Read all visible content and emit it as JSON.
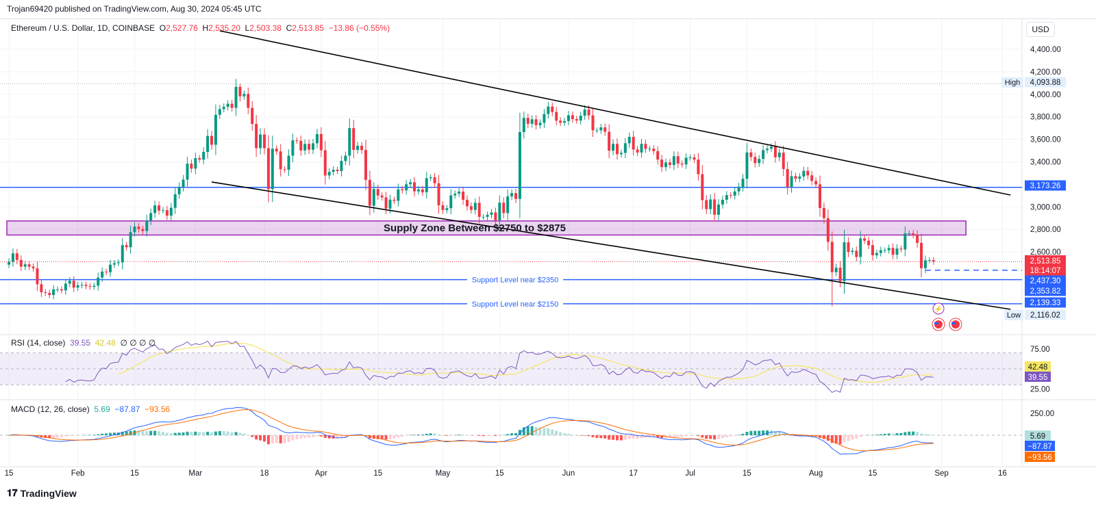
{
  "publisher": "Trojan69420 published on TradingView.com, Aug 30, 2024 05:45 UTC",
  "legend": {
    "symbol": "Ethereum / U.S. Dollar, 1D, COINBASE",
    "o_label": "O",
    "o": "2,527.76",
    "h_label": "H",
    "h": "2,535.20",
    "l_label": "L",
    "l": "2,503.38",
    "c_label": "C",
    "c": "2,513.85",
    "change": "−13.86 (−0.55%)"
  },
  "currency_button": "USD",
  "rsi_legend": {
    "title": "RSI (14, close)",
    "rsi": "39.55",
    "ma": "42.48",
    "extra": "∅ ∅ ∅ ∅"
  },
  "macd_legend": {
    "title": "MACD (12, 26, close)",
    "hist": "5.69",
    "macd": "−87.87",
    "signal": "−93.56"
  },
  "footer": {
    "brand": "TradingView"
  },
  "colors": {
    "up": "#089981",
    "down": "#f23645",
    "level": "#2962ff",
    "macd": "#2962ff",
    "signal": "#ff6d00",
    "rsi": "#7e57c2",
    "rsi_ma": "#f5e663"
  },
  "icons": [
    "lightning-icon",
    "us-flag-icon",
    "us-flag-icon"
  ],
  "chart_data": {
    "type": "candlestick",
    "title": "Ethereum / U.S. Dollar, 1D, COINBASE",
    "first_date": "2024-01-15",
    "last_date": "2024-08-30",
    "ylim": [
      2000,
      4560
    ],
    "y_ticks": [
      "4,400.00",
      "4,200.00",
      "4,000.00",
      "3,800.00",
      "3,600.00",
      "3,400.00",
      "3,000.00",
      "2,800.00",
      "2,600.00"
    ],
    "y_tick_values": [
      4400,
      4200,
      4000,
      3800,
      3600,
      3400,
      3000,
      2800,
      2600
    ],
    "x_ticks": [
      [
        "15",
        "2024-01-15"
      ],
      [
        "Feb",
        "2024-02-01"
      ],
      [
        "15",
        "2024-02-15"
      ],
      [
        "Mar",
        "2024-03-01"
      ],
      [
        "18",
        "2024-03-18"
      ],
      [
        "Apr",
        "2024-04-01"
      ],
      [
        "15",
        "2024-04-15"
      ],
      [
        "May",
        "2024-05-01"
      ],
      [
        "15",
        "2024-05-15"
      ],
      [
        "Jun",
        "2024-06-01"
      ],
      [
        "17",
        "2024-06-17"
      ],
      [
        "Jul",
        "2024-07-01"
      ],
      [
        "15",
        "2024-07-15"
      ],
      [
        "Aug",
        "2024-08-01"
      ],
      [
        "15",
        "2024-08-15"
      ],
      [
        "Sep",
        "2024-09-01"
      ],
      [
        "16",
        "2024-09-16"
      ]
    ],
    "close": [
      2512,
      2587,
      2529,
      2469,
      2490,
      2469,
      2454,
      2313,
      2242,
      2235,
      2217,
      2267,
      2268,
      2258,
      2318,
      2344,
      2283,
      2304,
      2308,
      2296,
      2290,
      2300,
      2372,
      2425,
      2420,
      2487,
      2500,
      2507,
      2660,
      2642,
      2775,
      2825,
      2803,
      2786,
      2880,
      2945,
      3013,
      2967,
      2971,
      2922,
      2992,
      3112,
      3177,
      3242,
      3384,
      3340,
      3433,
      3420,
      3488,
      3630,
      3552,
      3818,
      3869,
      3889,
      3916,
      3880,
      4066,
      3982,
      4004,
      3880,
      3737,
      3522,
      3643,
      3521,
      3157,
      3517,
      3493,
      3334,
      3330,
      3455,
      3591,
      3587,
      3501,
      3560,
      3508,
      3565,
      3647,
      3503,
      3279,
      3311,
      3330,
      3318,
      3408,
      3455,
      3700,
      3506,
      3543,
      3505,
      3240,
      3010,
      3158,
      3101,
      3084,
      2985,
      3064,
      3054,
      3156,
      3147,
      3201,
      3219,
      3138,
      3155,
      3130,
      3255,
      3263,
      3210,
      3014,
      2972,
      2988,
      3102,
      3117,
      3136,
      3063,
      3006,
      2973,
      3036,
      2911,
      2911,
      2930,
      2950,
      2881,
      3037,
      2945,
      3093,
      3122,
      3071,
      3664,
      3791,
      3738,
      3778,
      3726,
      3747,
      3825,
      3891,
      3843,
      3766,
      3748,
      3762,
      3814,
      3780,
      3767,
      3810,
      3865,
      3813,
      3680,
      3680,
      3706,
      3667,
      3499,
      3560,
      3468,
      3480,
      3565,
      3622,
      3510,
      3483,
      3560,
      3515,
      3517,
      3495,
      3420,
      3353,
      3395,
      3372,
      3450,
      3385,
      3377,
      3437,
      3440,
      3420,
      3290,
      3060,
      2980,
      3066,
      2930,
      3021,
      3063,
      3104,
      3100,
      3137,
      3179,
      3250,
      3484,
      3443,
      3389,
      3426,
      3504,
      3517,
      3535,
      3441,
      3482,
      3336,
      3175,
      3273,
      3250,
      3270,
      3320,
      3280,
      3230,
      3200,
      2990,
      2900,
      2689,
      2420,
      2460,
      2340,
      2685,
      2600,
      2610,
      2555,
      2720,
      2700,
      2660,
      2570,
      2590,
      2615,
      2615,
      2635,
      2575,
      2630,
      2622,
      2765,
      2765,
      2750,
      2680,
      2455,
      2525,
      2527,
      2514
    ],
    "high": {
      "value": "4,093.88",
      "label": "High",
      "price": 4093.88,
      "date": "2024-03-12"
    },
    "low": {
      "value": "2,116.02",
      "label": "Low",
      "price": 2116.02,
      "date": "2024-08-05"
    },
    "last_price": {
      "value": "2,513.85",
      "countdown": "18:14:07",
      "price": 2513.85
    },
    "levels": [
      {
        "price": 3173.26,
        "value": "3,173.26",
        "label": ""
      },
      {
        "price": 2353.82,
        "value": "2,353.82",
        "label": "Support Level near $2350"
      },
      {
        "price": 2139.33,
        "value": "2,139.33",
        "label": "Support Level near $2150"
      }
    ],
    "dashed_level": {
      "price": 2437.3,
      "value": "2,437.30",
      "from": "2024-08-28"
    },
    "supply_zone": {
      "low": 2750,
      "high": 2875,
      "to": "2024-09-07",
      "label": "Supply Zone Between $2750 to $2875"
    },
    "trendlines": [
      {
        "from": [
          "2024-03-07",
          4564
        ],
        "to": [
          "2024-09-18",
          3105
        ]
      },
      {
        "from": [
          "2024-03-05",
          3221
        ],
        "to": [
          "2024-09-18",
          2090
        ]
      }
    ],
    "rsi": {
      "period": 14,
      "ticks": [
        "75.00",
        "25.00"
      ],
      "upper": 70,
      "middle": 50,
      "lower": 30
    },
    "macd": {
      "fast": 12,
      "slow": 26,
      "signal": 9,
      "ticks": [
        "250.00"
      ]
    }
  }
}
